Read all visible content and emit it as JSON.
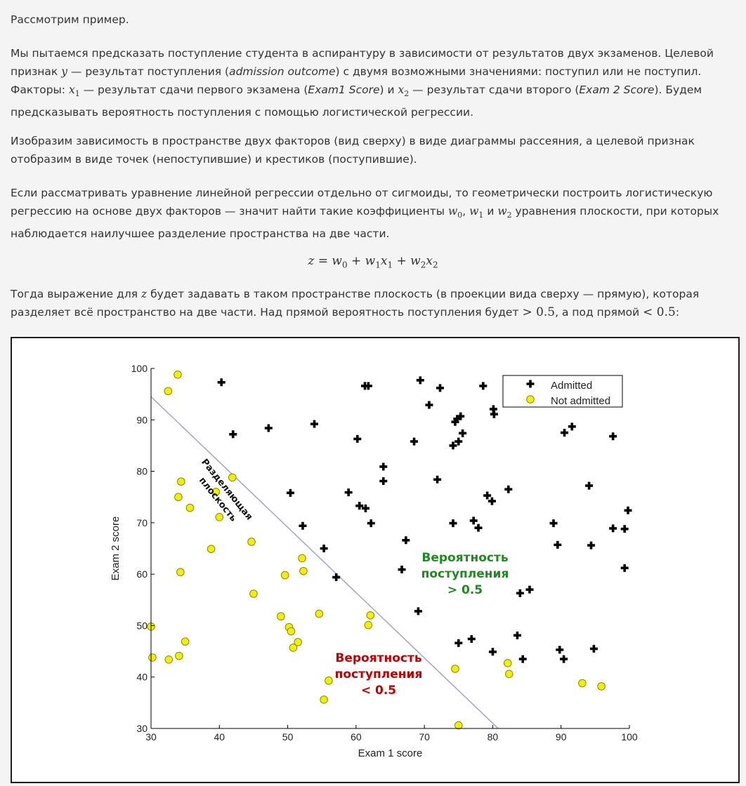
{
  "page": {
    "p1": "Рассмотрим пример.",
    "p2": {
      "a": "Мы пытаемся предсказать поступление студента в аспирантуру в зависимости от результатов двух экзаменов. Целевой признак ",
      "y": "y",
      "b": " — результат поступления (",
      "b_em": "admission outcome",
      "c": ") с двумя возможными значениями: поступил или не поступил. Факторы: ",
      "x1": "x",
      "x1_sub": "1",
      "d": " — результат сдачи первого экзамена (",
      "d_em": "Exam1 Score",
      "e": ") и ",
      "x2": "x",
      "x2_sub": "2",
      "f": " — результат сдачи второго (",
      "f_em": "Exam 2 Score",
      "g": "). Будем предсказывать вероятность поступления с помощью логистической регрессии."
    },
    "p3": "Изобразим зависимость в пространстве двух факторов (вид сверху) в виде диаграммы рассеяния, а целевой признак отобразим в виде точек (непоступившие) и крестиков (поступившие).",
    "p4": {
      "a": "Если рассматривать уравнение линейной регрессии отдельно от сигмоиды, то геометрически построить логистическую регрессию на основе двух факторов — значит найти такие коэффициенты ",
      "w0": "w",
      "w0_sub": "0",
      "sep1": ", ",
      "w1": "w",
      "w1_sub": "1",
      "and": " и ",
      "w2": "w",
      "w2_sub": "2",
      "b": " уравнения плоскости, при которых наблюдается наилучшее разделение пространства на две части."
    },
    "formula": {
      "z": "z",
      "eq": " = ",
      "w0": "w",
      "s0": "0",
      "plus1": " + ",
      "w1": "w",
      "s1": "1",
      "x1": "x",
      "sx1": "1",
      "plus2": " + ",
      "w2": "w",
      "s2": "2",
      "x2": "x",
      "sx2": "2"
    },
    "p5": {
      "a": "Тогда выражение для ",
      "z": "z",
      "b": " будет задавать в таком пространстве плоскость (в проекции вида сверху — прямую), которая разделяет всё пространство на две части. Над прямой вероятность поступления будет ",
      "gt": "> 0.5",
      "c": ", а под прямой ",
      "lt": "< 0.5",
      "d": ":"
    }
  },
  "chart_data": {
    "type": "scatter",
    "title": "",
    "xlabel": "Exam 1 score",
    "ylabel": "Exam 2 score",
    "xlim": [
      30,
      100
    ],
    "ylim": [
      30,
      100
    ],
    "xticks": [
      "30",
      "40",
      "50",
      "60",
      "70",
      "80",
      "90",
      "100"
    ],
    "yticks": [
      "30",
      "40",
      "50",
      "60",
      "70",
      "80",
      "90",
      "100"
    ],
    "grid": false,
    "legend_position": "top-right",
    "boundary_color": "#a8a8cc",
    "annotations": {
      "boundary_label_1": "Разделяющая",
      "boundary_label_2": "плоскость",
      "above_1": "Вероятность",
      "above_2": "поступления",
      "above_3": "> 0.5",
      "above_color": "#1f8a1f",
      "below_1": "Вероятность",
      "below_2": "поступления",
      "below_3": "< 0.5",
      "below_color": "#c00000"
    },
    "boundary": [
      [
        30,
        94.5
      ],
      [
        80.8,
        30
      ]
    ],
    "series": [
      {
        "name": "Admitted",
        "marker": "plus",
        "color": "#000000",
        "points": [
          [
            40.3,
            97.3
          ],
          [
            42,
            87.2
          ],
          [
            47.2,
            88.4
          ],
          [
            53.9,
            89.2
          ],
          [
            50.4,
            75.8
          ],
          [
            52.2,
            69.4
          ],
          [
            55.3,
            65
          ],
          [
            57.1,
            59.4
          ],
          [
            58.9,
            75.9
          ],
          [
            60.2,
            86.3
          ],
          [
            60.5,
            73.3
          ],
          [
            61.3,
            96.6
          ],
          [
            61.8,
            96.6
          ],
          [
            61.4,
            72.8
          ],
          [
            62.2,
            69.9
          ],
          [
            64,
            80.9
          ],
          [
            64,
            78.1
          ],
          [
            67.3,
            66.6
          ],
          [
            66.7,
            60.9
          ],
          [
            68.5,
            85.8
          ],
          [
            69.1,
            52.8
          ],
          [
            69.4,
            97.7
          ],
          [
            70.7,
            92.9
          ],
          [
            71.9,
            78.4
          ],
          [
            72.3,
            96.2
          ],
          [
            74.2,
            85
          ],
          [
            74.5,
            89.6
          ],
          [
            74.8,
            90.2
          ],
          [
            75,
            85.8
          ],
          [
            75.3,
            90.7
          ],
          [
            75.6,
            87.4
          ],
          [
            74.2,
            69.9
          ],
          [
            75,
            46.6
          ],
          [
            76.9,
            47.4
          ],
          [
            77.2,
            70.4
          ],
          [
            77.9,
            69
          ],
          [
            78.6,
            96.6
          ],
          [
            79.2,
            75.3
          ],
          [
            79.9,
            74.2
          ],
          [
            80.1,
            92.1
          ],
          [
            80.2,
            91.1
          ],
          [
            80,
            44.9
          ],
          [
            83.6,
            48.1
          ],
          [
            84,
            56.3
          ],
          [
            84.4,
            43.5
          ],
          [
            85.4,
            57
          ],
          [
            82.3,
            76.5
          ],
          [
            88.9,
            69.9
          ],
          [
            89.5,
            65.7
          ],
          [
            89.8,
            45.3
          ],
          [
            90.4,
            43.5
          ],
          [
            90.5,
            87.5
          ],
          [
            91.6,
            88.7
          ],
          [
            94.1,
            77.2
          ],
          [
            94.4,
            65.6
          ],
          [
            94.8,
            45.5
          ],
          [
            97.6,
            86.8
          ],
          [
            97.6,
            68.9
          ],
          [
            99.3,
            68.8
          ],
          [
            99.8,
            72.4
          ],
          [
            99.3,
            61.2
          ]
        ]
      },
      {
        "name": "Not admitted",
        "marker": "circle",
        "color": "#f0f000",
        "points": [
          [
            30,
            49.8
          ],
          [
            30.2,
            43.8
          ],
          [
            32.5,
            95.6
          ],
          [
            32.6,
            43.4
          ],
          [
            33.9,
            98.8
          ],
          [
            34,
            75
          ],
          [
            34.1,
            44.1
          ],
          [
            34.3,
            60.4
          ],
          [
            34.4,
            78
          ],
          [
            35,
            46.9
          ],
          [
            35.7,
            72.9
          ],
          [
            38.8,
            64.9
          ],
          [
            39.5,
            76
          ],
          [
            40,
            71.1
          ],
          [
            41.9,
            78.8
          ],
          [
            44.7,
            66.3
          ],
          [
            45,
            56.2
          ],
          [
            49,
            51.8
          ],
          [
            49.6,
            59.8
          ],
          [
            50.2,
            49.7
          ],
          [
            50.5,
            48.9
          ],
          [
            50.8,
            45.7
          ],
          [
            51.5,
            46.8
          ],
          [
            52.1,
            63.1
          ],
          [
            52.3,
            60.6
          ],
          [
            54.6,
            52.3
          ],
          [
            55.3,
            35.6
          ],
          [
            56,
            39.3
          ],
          [
            61.8,
            50.1
          ],
          [
            62.1,
            52
          ],
          [
            74.5,
            41.6
          ],
          [
            75,
            30.6
          ],
          [
            82.2,
            42.7
          ],
          [
            82.4,
            40.6
          ],
          [
            93.1,
            38.8
          ],
          [
            95.9,
            38.2
          ]
        ]
      }
    ]
  }
}
